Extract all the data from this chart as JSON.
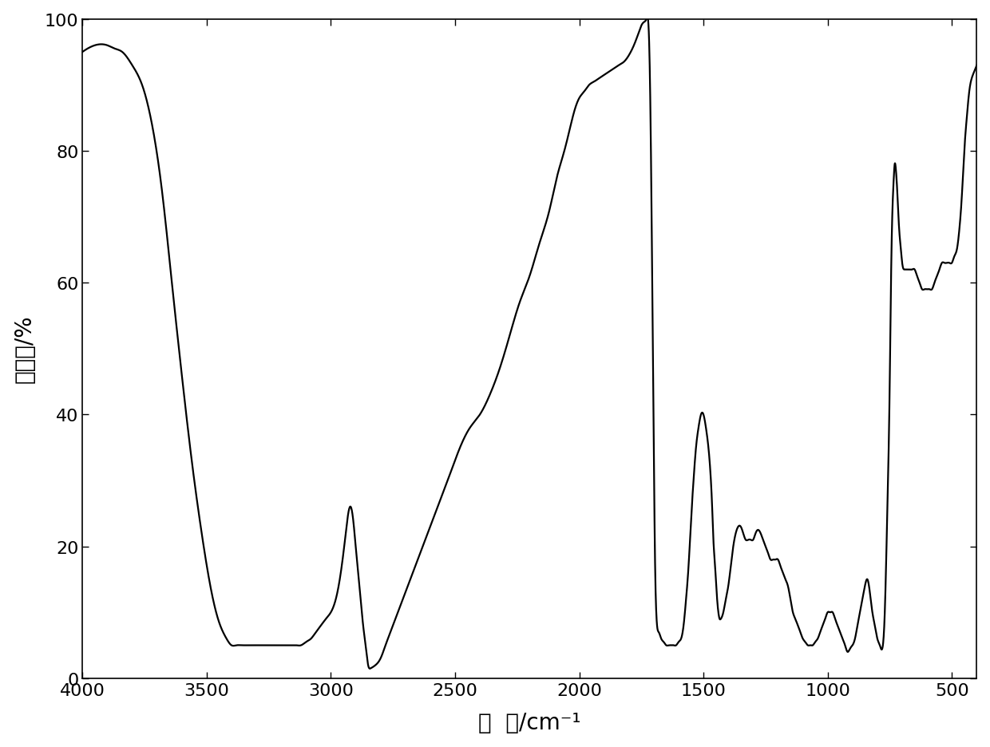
{
  "xlabel": "波  数/cm⁻¹",
  "ylabel": "透过率/%",
  "xlim": [
    4000,
    400
  ],
  "ylim": [
    0,
    100
  ],
  "xticks": [
    4000,
    3500,
    3000,
    2500,
    2000,
    1500,
    1000,
    500
  ],
  "yticks": [
    0,
    20,
    40,
    60,
    80,
    100
  ],
  "line_color": "#000000",
  "line_width": 1.6,
  "bg_color": "#ffffff",
  "xlabel_fontsize": 20,
  "ylabel_fontsize": 20,
  "tick_fontsize": 16
}
